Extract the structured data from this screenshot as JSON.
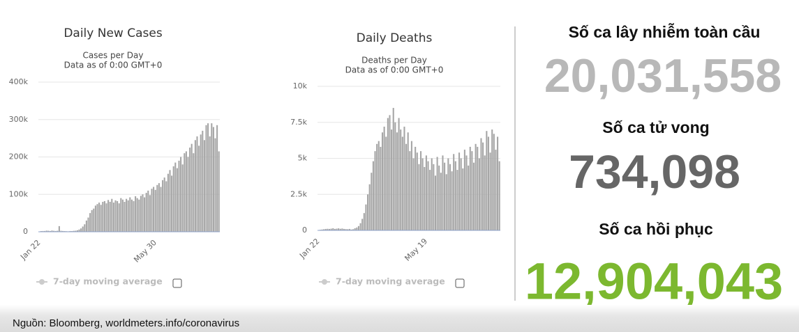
{
  "chart_data": [
    {
      "type": "bar",
      "title": "Daily New Cases",
      "subtitle": [
        "Cases per Day",
        "Data as of 0:00 GMT+0"
      ],
      "color": "#a6a6a6",
      "legend_label": "7-day moving average",
      "categories": [
        "Jan 22",
        null,
        null,
        null,
        null,
        null,
        null,
        null,
        null,
        null,
        null,
        null,
        null,
        null,
        null,
        null,
        null,
        null,
        null,
        null,
        null,
        null,
        null,
        null,
        null,
        null,
        null,
        null,
        null,
        null,
        null,
        null,
        null,
        null,
        null,
        null,
        null,
        null,
        null,
        null,
        null,
        null,
        null,
        null,
        null,
        null,
        null,
        null,
        null,
        null,
        null,
        null,
        null,
        null,
        null,
        null,
        null,
        null,
        null,
        null,
        null,
        null,
        null,
        null,
        "May 30",
        null,
        null,
        null,
        null,
        null,
        null,
        null,
        null,
        null,
        null,
        null,
        null,
        null,
        null,
        null,
        null,
        null,
        null,
        null,
        null,
        null,
        null,
        null,
        null,
        null,
        null,
        null,
        null,
        null,
        null,
        null,
        null,
        null,
        null,
        null
      ],
      "values": [
        600,
        1800,
        2000,
        2100,
        3000,
        2700,
        2000,
        3300,
        2500,
        2000,
        2600,
        15100,
        2600,
        2100,
        1800,
        1500,
        1200,
        1900,
        1800,
        2500,
        2900,
        4000,
        6000,
        9000,
        14000,
        20000,
        30000,
        38000,
        50000,
        58000,
        62000,
        70000,
        74000,
        78000,
        72000,
        80000,
        82000,
        76000,
        85000,
        80000,
        88000,
        78000,
        84000,
        82000,
        76000,
        90000,
        86000,
        80000,
        88000,
        84000,
        92000,
        86000,
        82000,
        95000,
        90000,
        86000,
        96000,
        100000,
        92000,
        104000,
        110000,
        98000,
        115000,
        120000,
        112000,
        125000,
        130000,
        120000,
        138000,
        145000,
        135000,
        155000,
        165000,
        150000,
        175000,
        185000,
        170000,
        190000,
        200000,
        180000,
        210000,
        215000,
        200000,
        225000,
        235000,
        210000,
        245000,
        255000,
        230000,
        260000,
        270000,
        245000,
        285000,
        290000,
        255000,
        290000,
        280000,
        250000,
        285000,
        215000
      ],
      "ylim": [
        0,
        400000
      ],
      "yticks": [
        0,
        {
          "value": 100000,
          "label": "100k"
        },
        {
          "value": 200000,
          "label": "200k"
        },
        {
          "value": 300000,
          "label": "300k"
        },
        {
          "value": 400000,
          "label": "400k"
        }
      ],
      "grid": true
    },
    {
      "type": "bar",
      "title": "Daily Deaths",
      "subtitle": [
        "Deaths per Day",
        "Data as of 0:00 GMT+0"
      ],
      "color": "#a6a6a6",
      "legend_label": "7-day moving average",
      "categories": [
        "Jan 22",
        null,
        null,
        null,
        null,
        null,
        null,
        null,
        null,
        null,
        null,
        null,
        null,
        null,
        null,
        null,
        null,
        null,
        null,
        null,
        null,
        null,
        null,
        null,
        null,
        null,
        null,
        null,
        null,
        null,
        null,
        null,
        null,
        null,
        null,
        null,
        null,
        null,
        null,
        null,
        null,
        null,
        null,
        null,
        null,
        null,
        null,
        null,
        null,
        null,
        null,
        null,
        null,
        null,
        null,
        null,
        null,
        null,
        null,
        "May 19",
        null,
        null,
        null,
        null,
        null,
        null,
        null,
        null,
        null,
        null,
        null,
        null,
        null,
        null,
        null,
        null,
        null,
        null,
        null,
        null,
        null,
        null,
        null,
        null,
        null,
        null,
        null,
        null,
        null,
        null,
        null,
        null,
        null,
        null,
        null,
        null,
        null,
        null,
        null,
        null
      ],
      "values": [
        20,
        40,
        60,
        80,
        100,
        110,
        100,
        120,
        150,
        100,
        120,
        140,
        110,
        130,
        100,
        90,
        80,
        100,
        60,
        80,
        150,
        200,
        300,
        500,
        800,
        1200,
        1800,
        2500,
        3200,
        4000,
        4800,
        5500,
        6000,
        6200,
        5800,
        6800,
        7200,
        6500,
        7800,
        8000,
        7000,
        8500,
        7500,
        6800,
        7800,
        7000,
        6500,
        7200,
        6000,
        6800,
        5500,
        6200,
        5000,
        5800,
        5400,
        4600,
        5500,
        5000,
        4400,
        5200,
        4800,
        4200,
        5000,
        4600,
        3800,
        5100,
        4500,
        4000,
        5200,
        4700,
        3900,
        5000,
        4600,
        4100,
        5300,
        4800,
        4200,
        5400,
        5000,
        4300,
        5600,
        5200,
        4500,
        5800,
        5500,
        4700,
        6000,
        5800,
        5000,
        6400,
        6100,
        5200,
        6900,
        6500,
        5400,
        7000,
        6700,
        5600,
        6500,
        4800
      ],
      "ylim": [
        0,
        10000
      ],
      "yticks": [
        0,
        {
          "value": 2500,
          "label": "2.5k"
        },
        {
          "value": 5000,
          "label": "5k"
        },
        {
          "value": 7500,
          "label": "7.5k"
        },
        {
          "value": 10000,
          "label": "10k"
        }
      ],
      "grid": true
    }
  ],
  "stats": [
    {
      "label": "Số ca lây nhiễm toàn cầu",
      "value": "20,031,558"
    },
    {
      "label": "Số ca tử vong",
      "value": "734,098"
    },
    {
      "label": "Số ca hồi phục",
      "value": "12,904,043"
    }
  ],
  "source": "Nguồn: Bloomberg, worldmeters.info/coronavirus"
}
